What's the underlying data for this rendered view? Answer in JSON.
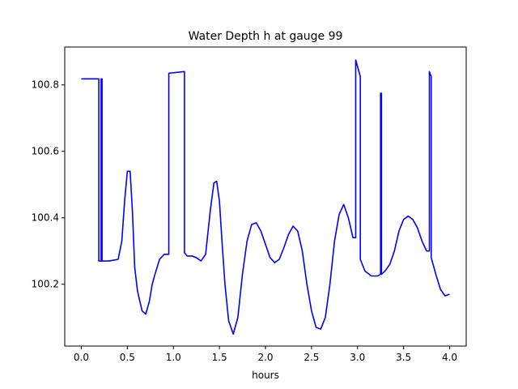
{
  "chart_data": {
    "type": "line",
    "title": "Water Depth h at gauge 99",
    "xlabel": "hours",
    "ylabel": "",
    "xlim": [
      -0.18,
      4.18
    ],
    "ylim": [
      100.014,
      100.914
    ],
    "xticks": [
      0.0,
      0.5,
      1.0,
      1.5,
      2.0,
      2.5,
      3.0,
      3.5,
      4.0
    ],
    "xtick_labels": [
      "0.0",
      "0.5",
      "1.0",
      "1.5",
      "2.0",
      "2.5",
      "3.0",
      "3.5",
      "4.0"
    ],
    "yticks": [
      100.2,
      100.4,
      100.6,
      100.8
    ],
    "ytick_labels": [
      "100.2",
      "100.4",
      "100.6",
      "100.8"
    ],
    "grid": false,
    "series": [
      {
        "color": "#0000ff",
        "x": [
          0.0,
          0.19,
          0.19,
          0.215,
          0.215,
          0.225,
          0.225,
          0.235,
          0.235,
          0.3,
          0.4,
          0.44,
          0.47,
          0.5,
          0.53,
          0.555,
          0.58,
          0.61,
          0.63,
          0.66,
          0.7,
          0.74,
          0.77,
          0.8,
          0.85,
          0.9,
          0.95,
          0.95,
          1.12,
          1.12,
          1.15,
          1.2,
          1.25,
          1.3,
          1.35,
          1.4,
          1.44,
          1.47,
          1.5,
          1.53,
          1.56,
          1.6,
          1.65,
          1.7,
          1.75,
          1.8,
          1.85,
          1.9,
          1.95,
          2.0,
          2.05,
          2.1,
          2.15,
          2.2,
          2.25,
          2.3,
          2.35,
          2.4,
          2.45,
          2.5,
          2.55,
          2.6,
          2.65,
          2.7,
          2.75,
          2.8,
          2.85,
          2.9,
          2.95,
          2.98,
          2.98,
          3.03,
          3.03,
          3.08,
          3.15,
          3.22,
          3.25,
          3.25,
          3.26,
          3.26,
          3.3,
          3.35,
          3.4,
          3.45,
          3.5,
          3.55,
          3.6,
          3.65,
          3.7,
          3.75,
          3.78,
          3.78,
          3.8,
          3.8,
          3.85,
          3.9,
          3.95,
          4.0
        ],
        "y": [
          100.818,
          100.818,
          100.27,
          100.27,
          100.818,
          100.818,
          100.27,
          100.27,
          100.27,
          100.27,
          100.275,
          100.33,
          100.45,
          100.54,
          100.54,
          100.42,
          100.25,
          100.18,
          100.155,
          100.12,
          100.11,
          100.15,
          100.2,
          100.23,
          100.275,
          100.29,
          100.29,
          100.835,
          100.84,
          100.295,
          100.285,
          100.285,
          100.28,
          100.27,
          100.29,
          100.42,
          100.505,
          100.51,
          100.45,
          100.32,
          100.2,
          100.09,
          100.05,
          100.1,
          100.23,
          100.33,
          100.38,
          100.385,
          100.36,
          100.32,
          100.28,
          100.265,
          100.275,
          100.31,
          100.35,
          100.375,
          100.36,
          100.3,
          100.2,
          100.12,
          100.07,
          100.065,
          100.1,
          100.2,
          100.33,
          100.41,
          100.44,
          100.4,
          100.34,
          100.34,
          100.875,
          100.825,
          100.275,
          100.24,
          100.225,
          100.225,
          100.23,
          100.775,
          100.775,
          100.23,
          100.24,
          100.26,
          100.3,
          100.36,
          100.395,
          100.405,
          100.395,
          100.37,
          100.33,
          100.3,
          100.3,
          100.84,
          100.825,
          100.28,
          100.23,
          100.185,
          100.165,
          100.17
        ]
      }
    ]
  }
}
